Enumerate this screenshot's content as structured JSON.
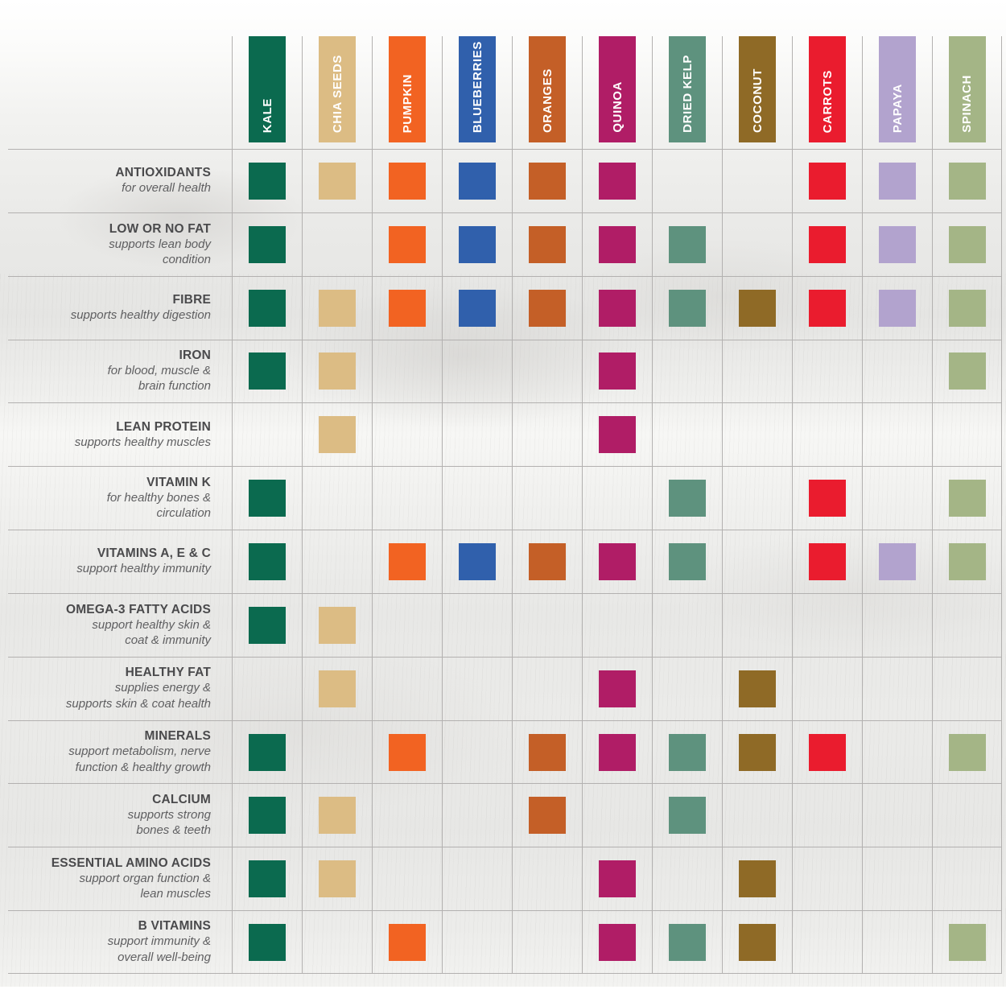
{
  "columns": [
    {
      "label": "KALE",
      "color": "#0B6A4F"
    },
    {
      "label": "CHIA SEEDS",
      "color": "#DCBC84"
    },
    {
      "label": "PUMPKIN",
      "color": "#F26322"
    },
    {
      "label": "BLUEBERRIES",
      "color": "#3060AC"
    },
    {
      "label": "ORANGES",
      "color": "#C45F27"
    },
    {
      "label": "QUINOA",
      "color": "#B01D66"
    },
    {
      "label": "DRIED KELP",
      "color": "#5E927E"
    },
    {
      "label": "COCONUT",
      "color": "#8F6A26"
    },
    {
      "label": "CARROTS",
      "color": "#EA1C2E"
    },
    {
      "label": "PAPAYA",
      "color": "#B2A3CE"
    },
    {
      "label": "SPINACH",
      "color": "#A4B586"
    }
  ],
  "rows": [
    {
      "title": "ANTIOXIDANTS",
      "subtitle": "for overall health",
      "cells": [
        1,
        1,
        1,
        1,
        1,
        1,
        0,
        0,
        1,
        1,
        1
      ]
    },
    {
      "title": "LOW OR NO FAT",
      "subtitle": "supports lean body\ncondition",
      "cells": [
        1,
        0,
        1,
        1,
        1,
        1,
        1,
        0,
        1,
        1,
        1
      ]
    },
    {
      "title": "FIBRE",
      "subtitle": "supports healthy digestion",
      "cells": [
        1,
        1,
        1,
        1,
        1,
        1,
        1,
        1,
        1,
        1,
        1
      ]
    },
    {
      "title": "IRON",
      "subtitle": "for blood, muscle &\nbrain function",
      "cells": [
        1,
        1,
        0,
        0,
        0,
        1,
        0,
        0,
        0,
        0,
        1
      ]
    },
    {
      "title": "LEAN PROTEIN",
      "subtitle": "supports healthy muscles",
      "cells": [
        0,
        1,
        0,
        0,
        0,
        1,
        0,
        0,
        0,
        0,
        0
      ]
    },
    {
      "title": "VITAMIN K",
      "subtitle": "for healthy bones &\ncirculation",
      "cells": [
        1,
        0,
        0,
        0,
        0,
        0,
        1,
        0,
        1,
        0,
        1
      ]
    },
    {
      "title": "VITAMINS A, E & C",
      "subtitle": "support healthy immunity",
      "cells": [
        1,
        0,
        1,
        1,
        1,
        1,
        1,
        0,
        1,
        1,
        1
      ]
    },
    {
      "title": "OMEGA-3 FATTY ACIDS",
      "subtitle": "support healthy skin &\ncoat & immunity",
      "cells": [
        1,
        1,
        0,
        0,
        0,
        0,
        0,
        0,
        0,
        0,
        0
      ]
    },
    {
      "title": "HEALTHY FAT",
      "subtitle": "supplies energy &\nsupports skin & coat health",
      "cells": [
        0,
        1,
        0,
        0,
        0,
        1,
        0,
        1,
        0,
        0,
        0
      ]
    },
    {
      "title": "MINERALS",
      "subtitle": "support metabolism, nerve\nfunction & healthy growth",
      "cells": [
        1,
        0,
        1,
        0,
        1,
        1,
        1,
        1,
        1,
        0,
        1
      ]
    },
    {
      "title": "CALCIUM",
      "subtitle": "supports strong\nbones & teeth",
      "cells": [
        1,
        1,
        0,
        0,
        1,
        0,
        1,
        0,
        0,
        0,
        0
      ]
    },
    {
      "title": "ESSENTIAL AMINO ACIDS",
      "subtitle": "support organ function &\nlean muscles",
      "cells": [
        1,
        1,
        0,
        0,
        0,
        1,
        0,
        1,
        0,
        0,
        0
      ]
    },
    {
      "title": "B VITAMINS",
      "subtitle": "support immunity &\noverall well-being",
      "cells": [
        1,
        0,
        1,
        0,
        0,
        1,
        1,
        1,
        0,
        0,
        1
      ]
    }
  ]
}
